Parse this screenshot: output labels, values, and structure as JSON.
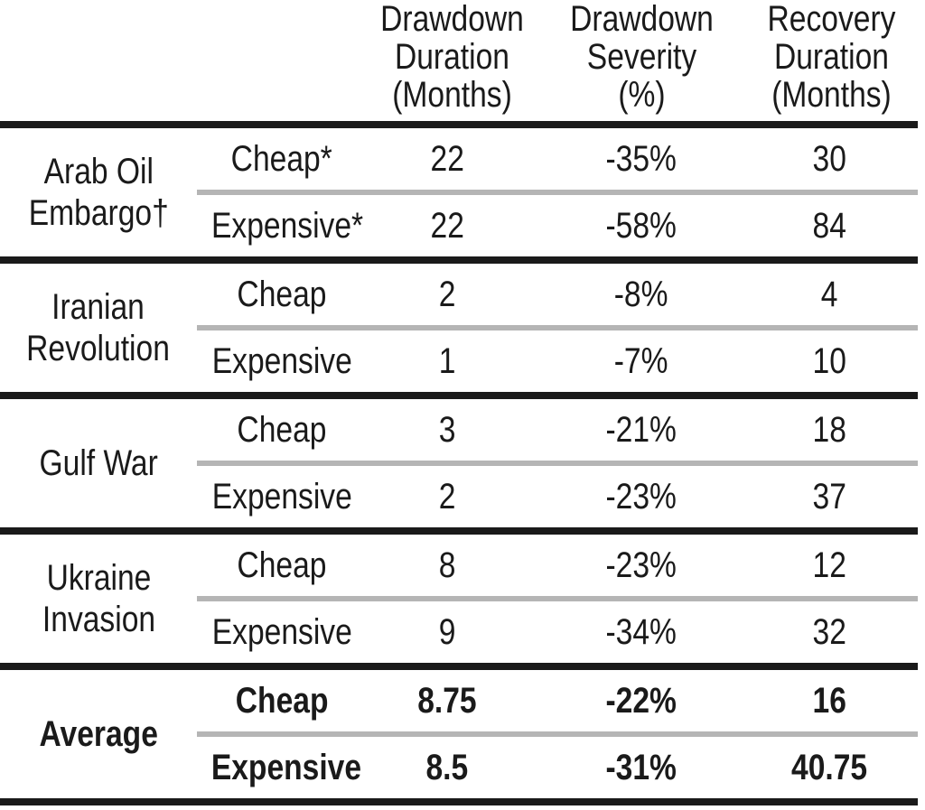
{
  "colors": {
    "rule": "#1a1a1a",
    "row_divider": "#b5b5b5",
    "text": "#1a1a1a",
    "background": "#ffffff"
  },
  "table": {
    "headers": [
      "Drawdown\nDuration\n(Months)",
      "Drawdown\nSeverity\n(%)",
      "Recovery\nDuration\n(Months)"
    ],
    "sections": [
      {
        "event": "Arab Oil\nEmbargo†",
        "rows": [
          {
            "label": "Cheap*",
            "drawdown_duration": "22",
            "drawdown_severity": "-35%",
            "recovery_duration": "30"
          },
          {
            "label": "Expensive*",
            "drawdown_duration": "22",
            "drawdown_severity": "-58%",
            "recovery_duration": "84"
          }
        ]
      },
      {
        "event": "Iranian\nRevolution",
        "rows": [
          {
            "label": "Cheap",
            "drawdown_duration": "2",
            "drawdown_severity": "-8%",
            "recovery_duration": "4"
          },
          {
            "label": "Expensive",
            "drawdown_duration": "1",
            "drawdown_severity": "-7%",
            "recovery_duration": "10"
          }
        ]
      },
      {
        "event": "Gulf War",
        "rows": [
          {
            "label": "Cheap",
            "drawdown_duration": "3",
            "drawdown_severity": "-21%",
            "recovery_duration": "18"
          },
          {
            "label": "Expensive",
            "drawdown_duration": "2",
            "drawdown_severity": "-23%",
            "recovery_duration": "37"
          }
        ]
      },
      {
        "event": "Ukraine\nInvasion",
        "rows": [
          {
            "label": "Cheap",
            "drawdown_duration": "8",
            "drawdown_severity": "-23%",
            "recovery_duration": "12"
          },
          {
            "label": "Expensive",
            "drawdown_duration": "9",
            "drawdown_severity": "-34%",
            "recovery_duration": "32"
          }
        ]
      },
      {
        "event": "Average",
        "bold": true,
        "rows": [
          {
            "label": "Cheap",
            "drawdown_duration": "8.75",
            "drawdown_severity": "-22%",
            "recovery_duration": "16"
          },
          {
            "label": "Expensive",
            "drawdown_duration": "8.5",
            "drawdown_severity": "-31%",
            "recovery_duration": "40.75"
          }
        ]
      }
    ]
  },
  "chart_data": {
    "type": "table",
    "title": "",
    "columns": [
      "Event",
      "Scenario",
      "Drawdown Duration (Months)",
      "Drawdown Severity (%)",
      "Recovery Duration (Months)"
    ],
    "rows": [
      [
        "Arab Oil Embargo†",
        "Cheap*",
        22,
        "-35%",
        30
      ],
      [
        "Arab Oil Embargo†",
        "Expensive*",
        22,
        "-58%",
        84
      ],
      [
        "Iranian Revolution",
        "Cheap",
        2,
        "-8%",
        4
      ],
      [
        "Iranian Revolution",
        "Expensive",
        1,
        "-7%",
        10
      ],
      [
        "Gulf War",
        "Cheap",
        3,
        "-21%",
        18
      ],
      [
        "Gulf War",
        "Expensive",
        2,
        "-23%",
        37
      ],
      [
        "Ukraine Invasion",
        "Cheap",
        8,
        "-23%",
        12
      ],
      [
        "Ukraine Invasion",
        "Expensive",
        9,
        "-34%",
        32
      ],
      [
        "Average",
        "Cheap",
        8.75,
        "-22%",
        16
      ],
      [
        "Average",
        "Expensive",
        8.5,
        "-31%",
        40.75
      ]
    ],
    "layout_hints": {
      "thick_black_rules_between_sections": true,
      "gray_divider_between_subrows": true,
      "average_section_bold": true,
      "numeric_columns_centered": true
    }
  }
}
